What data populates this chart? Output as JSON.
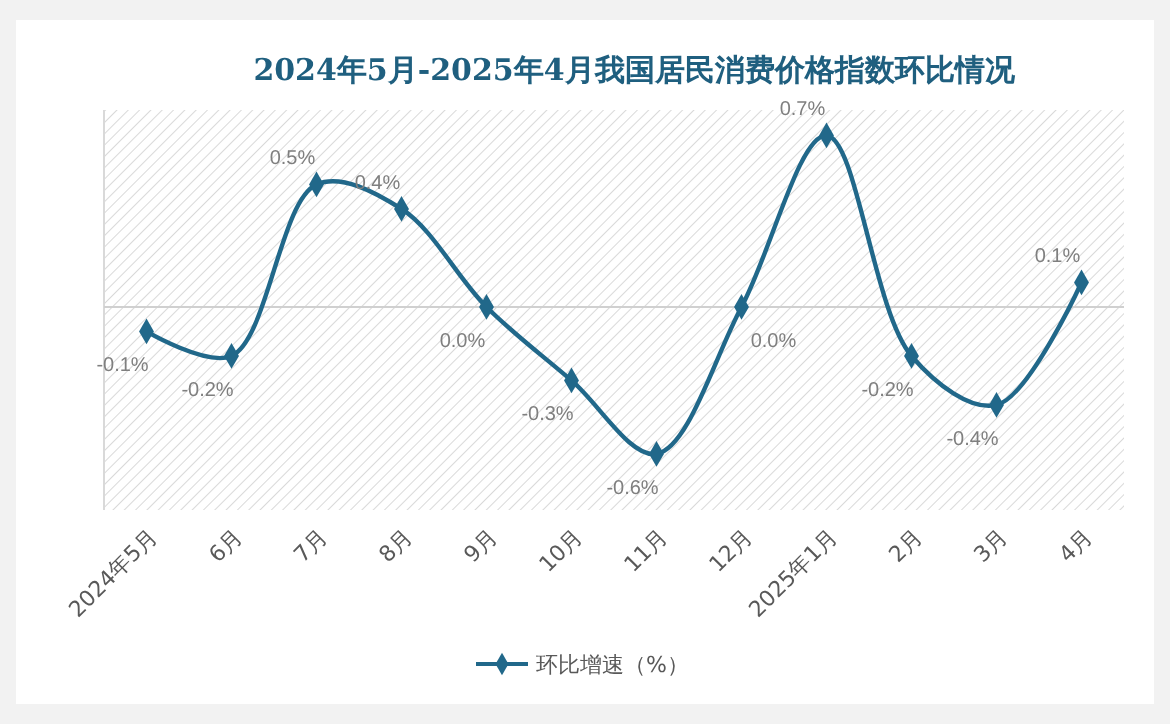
{
  "chart_data": {
    "type": "line",
    "title": "2024年5月-2025年4月我国居民消费价格指数环比情况",
    "categories": [
      "2024年5月",
      "6月",
      "7月",
      "8月",
      "9月",
      "10月",
      "11月",
      "12月",
      "2025年1月",
      "2月",
      "3月",
      "4月"
    ],
    "series": [
      {
        "name": "环比增速（%）",
        "color": "#21688a",
        "values": [
          -0.1,
          -0.2,
          0.5,
          0.4,
          0.0,
          -0.3,
          -0.6,
          0.0,
          0.7,
          -0.2,
          -0.4,
          0.1
        ],
        "value_labels": [
          "-0.1%",
          "-0.2%",
          "0.5%",
          "0.4%",
          "0.0%",
          "-0.3%",
          "-0.6%",
          "0.0%",
          "0.7%",
          "-0.2%",
          "-0.4%",
          "0.1%"
        ]
      }
    ],
    "marker": "diamond",
    "legend": "bottom",
    "grid": false,
    "tick_labels": "x"
  }
}
